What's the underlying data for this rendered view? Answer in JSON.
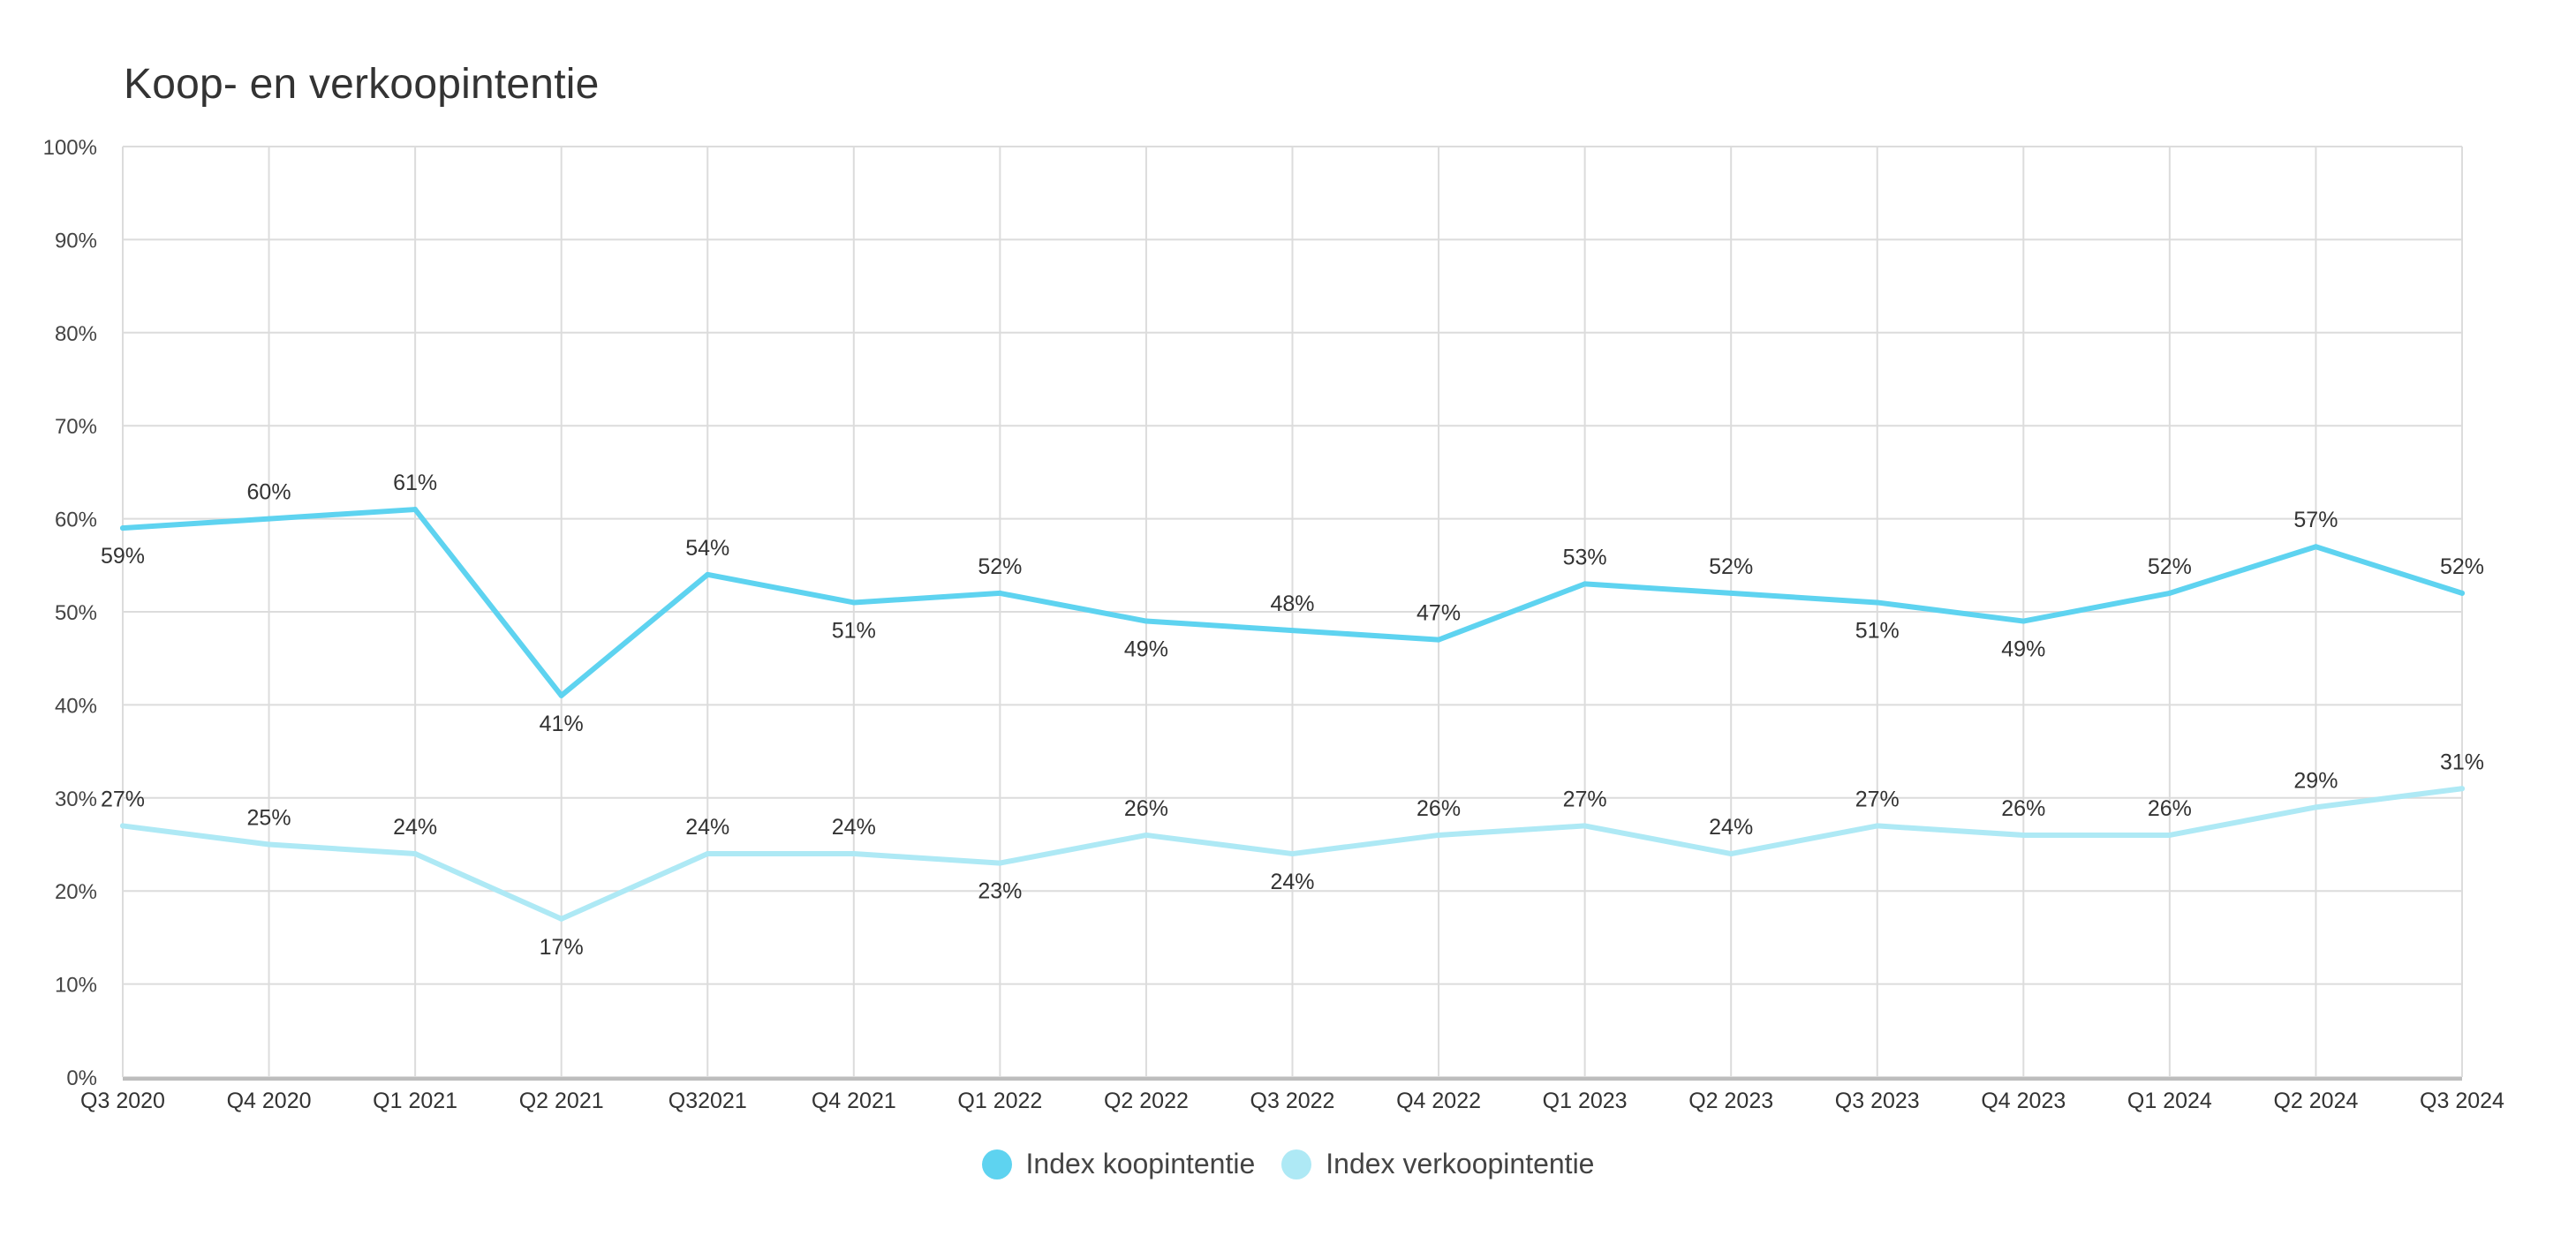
{
  "chart_data": {
    "type": "line",
    "title": "Koop- en verkoopintentie",
    "xlabel": "",
    "ylabel": "",
    "ylim": [
      0,
      100
    ],
    "yticks": [
      "0%",
      "10%",
      "20%",
      "30%",
      "40%",
      "50%",
      "60%",
      "70%",
      "80%",
      "90%",
      "100%"
    ],
    "categories": [
      "Q3 2020",
      "Q4 2020",
      "Q1 2021",
      "Q2 2021",
      "Q32021",
      "Q4 2021",
      "Q1 2022",
      "Q2 2022",
      "Q3 2022",
      "Q4 2022",
      "Q1 2023",
      "Q2 2023",
      "Q3 2023",
      "Q4 2023",
      "Q1 2024",
      "Q2 2024",
      "Q3 2024"
    ],
    "series": [
      {
        "name": "Index koopintentie",
        "color": "#5ed3f0",
        "values": [
          59,
          60,
          61,
          41,
          54,
          51,
          52,
          49,
          48,
          47,
          53,
          52,
          51,
          49,
          52,
          57,
          52
        ],
        "labels": [
          "59%",
          "60%",
          "61%",
          "41%",
          "54%",
          "51%",
          "52%",
          "49%",
          "48%",
          "47%",
          "53%",
          "52%",
          "51%",
          "49%",
          "52%",
          "57%",
          "52%"
        ],
        "label_positions": [
          "below",
          "above",
          "above",
          "below",
          "above",
          "below",
          "above",
          "below",
          "above",
          "above",
          "above",
          "above",
          "below",
          "below",
          "above",
          "above",
          "above"
        ]
      },
      {
        "name": "Index verkoopintentie",
        "color": "#aee9f5",
        "values": [
          27,
          25,
          24,
          17,
          24,
          24,
          23,
          26,
          24,
          26,
          27,
          24,
          27,
          26,
          26,
          29,
          31
        ],
        "labels": [
          "27%",
          "25%",
          "24%",
          "17%",
          "24%",
          "24%",
          "23%",
          "26%",
          "24%",
          "26%",
          "27%",
          "24%",
          "27%",
          "26%",
          "26%",
          "29%",
          "31%"
        ],
        "label_positions": [
          "above",
          "above",
          "above",
          "below",
          "above",
          "above",
          "below",
          "above",
          "below",
          "above",
          "above",
          "above",
          "above",
          "above",
          "above",
          "above",
          "above"
        ]
      }
    ],
    "grid": true,
    "legend_position": "bottom-center"
  }
}
